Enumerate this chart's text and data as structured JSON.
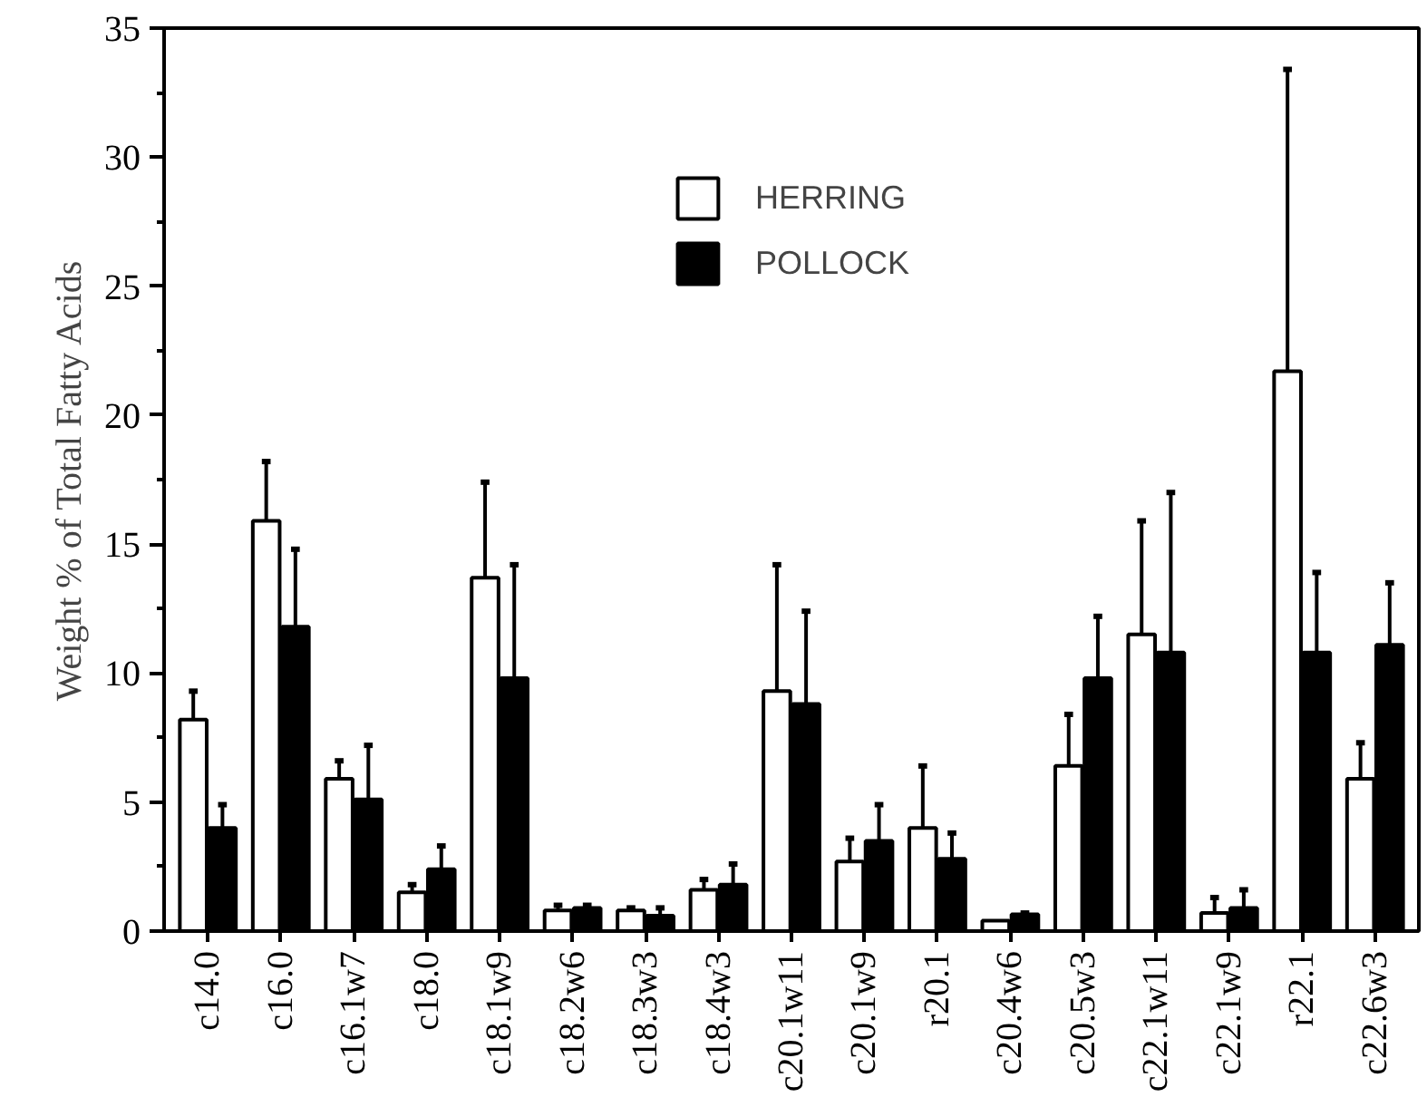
{
  "chart_data": {
    "type": "bar",
    "ylabel": "Weight % of Total Fatty Acids",
    "categories": [
      "c14.0",
      "c16.0",
      "c16.1w7",
      "c18.0",
      "c18.1w9",
      "c18.2w6",
      "c18.3w3",
      "c18.4w3",
      "c20.1w11",
      "c20.1w9",
      "r20.1",
      "c20.4w6",
      "c20.5w3",
      "c22.1w11",
      "c22.1w9",
      "r22.1",
      "c22.6w3"
    ],
    "series": [
      {
        "name": "HERRING",
        "color": "#ffffff",
        "values": [
          8.2,
          15.9,
          5.9,
          1.5,
          13.7,
          0.8,
          0.8,
          1.6,
          9.3,
          2.7,
          4.0,
          0.4,
          6.4,
          11.5,
          0.7,
          21.7,
          5.9
        ],
        "errors": [
          [
            8.2,
            9.3
          ],
          [
            15.9,
            18.2
          ],
          [
            5.9,
            6.6
          ],
          [
            1.5,
            1.8
          ],
          [
            13.7,
            17.4
          ],
          [
            0.8,
            1.0
          ],
          [
            0.8,
            0.9
          ],
          [
            1.6,
            2.0
          ],
          [
            9.3,
            14.2
          ],
          [
            2.7,
            3.6
          ],
          [
            4.0,
            6.4
          ],
          null,
          [
            6.4,
            8.4
          ],
          [
            11.5,
            15.9
          ],
          [
            0.7,
            1.3
          ],
          [
            21.7,
            33.4
          ],
          [
            5.9,
            7.3
          ]
        ]
      },
      {
        "name": "POLLOCK",
        "color": "#000000",
        "values": [
          4.0,
          11.8,
          5.1,
          2.4,
          9.8,
          0.9,
          0.6,
          1.8,
          8.8,
          3.5,
          2.8,
          0.65,
          9.8,
          10.8,
          0.9,
          10.8,
          11.1
        ],
        "errors": [
          [
            4.0,
            4.9
          ],
          [
            11.8,
            14.8
          ],
          [
            5.1,
            7.2
          ],
          [
            2.4,
            3.3
          ],
          [
            9.8,
            14.2
          ],
          [
            0.9,
            1.0
          ],
          [
            0.6,
            0.9
          ],
          [
            1.8,
            2.6
          ],
          [
            8.8,
            12.4
          ],
          [
            3.5,
            4.9
          ],
          [
            2.8,
            3.8
          ],
          [
            0.65,
            0.7
          ],
          [
            9.8,
            12.2
          ],
          [
            10.8,
            17.0
          ],
          [
            0.9,
            1.6
          ],
          [
            10.8,
            13.9
          ],
          [
            11.1,
            13.5
          ]
        ]
      }
    ],
    "ylim": [
      0,
      35
    ],
    "yticks": [
      0,
      5,
      10,
      15,
      20,
      25,
      30,
      35
    ],
    "grid": false,
    "legend": "top"
  }
}
